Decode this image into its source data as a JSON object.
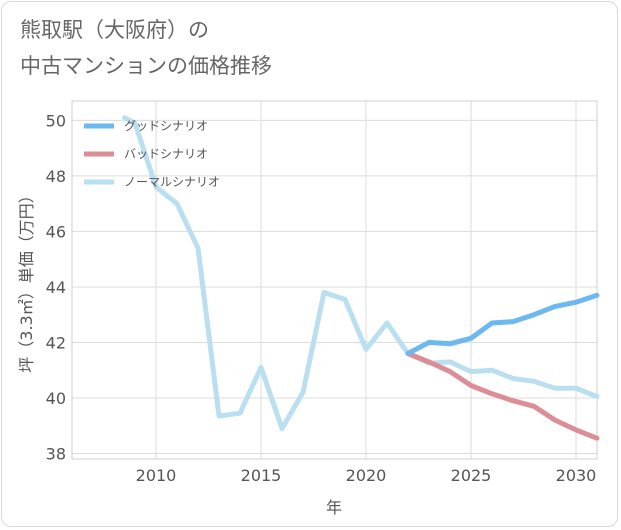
{
  "title_line1": "熊取駅（大阪府）の",
  "title_line2": "中古マンションの価格推移",
  "chart_data": {
    "type": "line",
    "xlabel": "年",
    "ylabel": "坪（3.3㎡）単価（万円）",
    "xlim": [
      2006,
      2031
    ],
    "ylim": [
      37.8,
      50.7
    ],
    "x_ticks": [
      2010,
      2015,
      2020,
      2025,
      2030
    ],
    "y_ticks": [
      38,
      40,
      42,
      44,
      46,
      48,
      50
    ],
    "grid": true,
    "legend_position": "top-left",
    "series": [
      {
        "name": "グッドシナリオ",
        "color": "#6cb8f0",
        "x": [
          2022,
          2023,
          2024,
          2025,
          2026,
          2027,
          2028,
          2029,
          2030,
          2031
        ],
        "y": [
          41.6,
          42.0,
          41.95,
          42.15,
          42.7,
          42.75,
          43.0,
          43.3,
          43.45,
          43.7
        ]
      },
      {
        "name": "バッドシナリオ",
        "color": "#dd8d95",
        "x": [
          2022,
          2023,
          2024,
          2025,
          2026,
          2027,
          2028,
          2029,
          2030,
          2031
        ],
        "y": [
          41.6,
          41.3,
          40.95,
          40.45,
          40.15,
          39.9,
          39.7,
          39.2,
          38.85,
          38.55
        ]
      },
      {
        "name": "ノーマルシナリオ",
        "color": "#b9dff0",
        "x": [
          2008.5,
          2009,
          2010,
          2011,
          2012,
          2013,
          2014,
          2015,
          2016,
          2017,
          2018,
          2019,
          2020,
          2021,
          2022,
          2023,
          2024,
          2025,
          2026,
          2027,
          2028,
          2029,
          2030,
          2031
        ],
        "y": [
          50.1,
          49.9,
          47.6,
          47.0,
          45.4,
          39.35,
          39.45,
          41.1,
          38.9,
          40.2,
          43.8,
          43.55,
          41.75,
          42.7,
          41.6,
          41.25,
          41.3,
          40.95,
          41.0,
          40.7,
          40.6,
          40.35,
          40.35,
          40.05
        ]
      }
    ]
  }
}
